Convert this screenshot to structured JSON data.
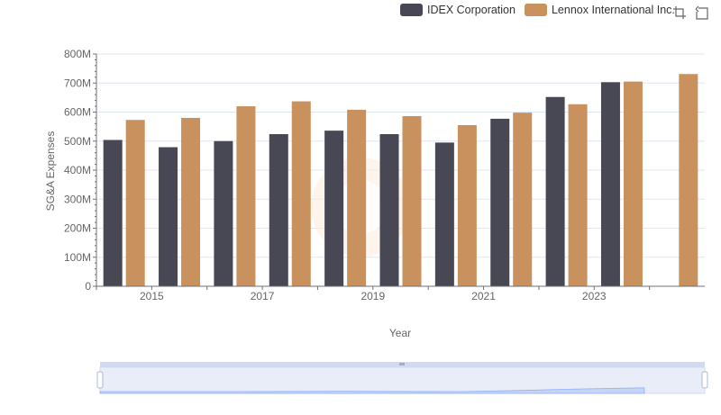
{
  "legend": [
    {
      "name": "IDEX Corporation",
      "color": "#484855"
    },
    {
      "name": "Lennox International Inc.",
      "color": "#c8915e"
    }
  ],
  "toolbox": {
    "icons": [
      "zoom-icon",
      "restore-icon"
    ]
  },
  "chart_data": {
    "type": "bar",
    "xlabel": "Year",
    "ylabel": "SG&A Expenses",
    "categories": [
      "2014",
      "2015",
      "2016",
      "2017",
      "2018",
      "2019",
      "2020",
      "2021",
      "2022",
      "2023",
      "2024"
    ],
    "x_tick_labels": [
      "2015",
      "2017",
      "2019",
      "2021",
      "2023"
    ],
    "y_tick_labels": [
      "0",
      "100M",
      "200M",
      "300M",
      "400M",
      "500M",
      "600M",
      "700M",
      "800M"
    ],
    "ylim": [
      0,
      800000000
    ],
    "grid": true,
    "legend_position": "top-right",
    "series": [
      {
        "name": "IDEX Corporation",
        "color": "#484855",
        "values": [
          504000000,
          479000000,
          500000000,
          524000000,
          536000000,
          524000000,
          495000000,
          577000000,
          652000000,
          703000000,
          null
        ]
      },
      {
        "name": "Lennox International Inc.",
        "color": "#c8915e",
        "values": [
          573000000,
          580000000,
          620000000,
          637000000,
          608000000,
          586000000,
          555000000,
          598000000,
          627000000,
          705000000,
          731000000
        ]
      }
    ]
  }
}
